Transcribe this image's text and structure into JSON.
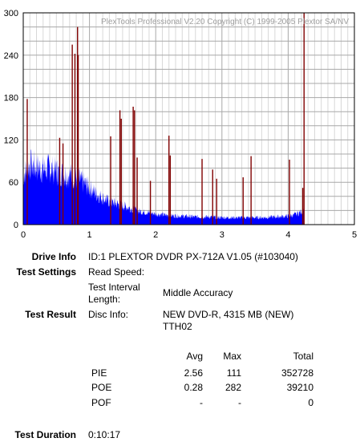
{
  "chart_data": {
    "type": "area",
    "title": "PlexTools Professional V2.20 Copyright (C) 1999-2005 Plextor SA/NV",
    "xlabel": "",
    "ylabel": "",
    "xlim": [
      0,
      5
    ],
    "ylim": [
      0,
      300
    ],
    "x_ticks": [
      "0",
      "1",
      "2",
      "3",
      "4",
      "5"
    ],
    "y_ticks": [
      "0",
      "60",
      "120",
      "180",
      "240",
      "300"
    ],
    "grid": true,
    "series": [
      {
        "kind": "pie_area",
        "color": "#0000ff",
        "x": [
          0.0,
          0.1,
          0.2,
          0.3,
          0.4,
          0.5,
          0.6,
          0.7,
          0.8,
          0.9,
          1.0,
          1.1,
          1.2,
          1.3,
          1.4,
          1.5,
          1.6,
          1.7,
          1.8,
          1.9,
          2.0,
          2.2,
          2.4,
          2.6,
          2.8,
          3.0,
          3.2,
          3.4,
          3.6,
          3.8,
          4.0,
          4.1,
          4.2,
          4.24
        ],
        "y": [
          70,
          85,
          82,
          78,
          80,
          75,
          72,
          70,
          66,
          60,
          52,
          44,
          38,
          32,
          30,
          27,
          24,
          20,
          18,
          17,
          15,
          13,
          12,
          11,
          11,
          10,
          10,
          10,
          10,
          11,
          12,
          14,
          18,
          22
        ]
      },
      {
        "kind": "poe_spikes",
        "color": "#800000",
        "x": [
          0.06,
          0.55,
          0.6,
          0.74,
          0.78,
          0.82,
          0.83,
          1.32,
          1.46,
          1.48,
          1.66,
          1.68,
          1.72,
          1.92,
          2.2,
          2.22,
          2.7,
          2.86,
          2.92,
          3.32,
          3.44,
          4.02,
          4.22,
          4.24
        ],
        "y": [
          178,
          123,
          115,
          255,
          242,
          280,
          240,
          125,
          162,
          150,
          167,
          162,
          95,
          62,
          126,
          98,
          93,
          78,
          65,
          67,
          97,
          92,
          52,
          300
        ]
      }
    ]
  },
  "info": {
    "drive_info_label": "Drive Info",
    "drive_info_value": "ID:1 PLEXTOR DVDR PX-712A V1.05 (#103040)",
    "test_settings_label": "Test Settings",
    "read_speed_label": "Read Speed:",
    "interval_label_1": "Test Interval",
    "interval_label_2": "Length:",
    "interval_value": "Middle Accuracy",
    "test_result_label": "Test Result",
    "disc_info_label": "Disc Info:",
    "disc_info_value_1": "NEW DVD-R, 4315 MB (NEW)",
    "disc_info_value_2": "TTH02",
    "test_duration_label": "Test Duration",
    "test_duration_value": "0:10:17"
  },
  "results": {
    "headers": {
      "avg": "Avg",
      "max": "Max",
      "total": "Total"
    },
    "rows": [
      {
        "name": "PIE",
        "avg": "2.56",
        "max": "111",
        "total": "352728"
      },
      {
        "name": "POE",
        "avg": "0.28",
        "max": "282",
        "total": "39210"
      },
      {
        "name": "POF",
        "avg": "-",
        "max": "-",
        "total": "0"
      }
    ]
  }
}
